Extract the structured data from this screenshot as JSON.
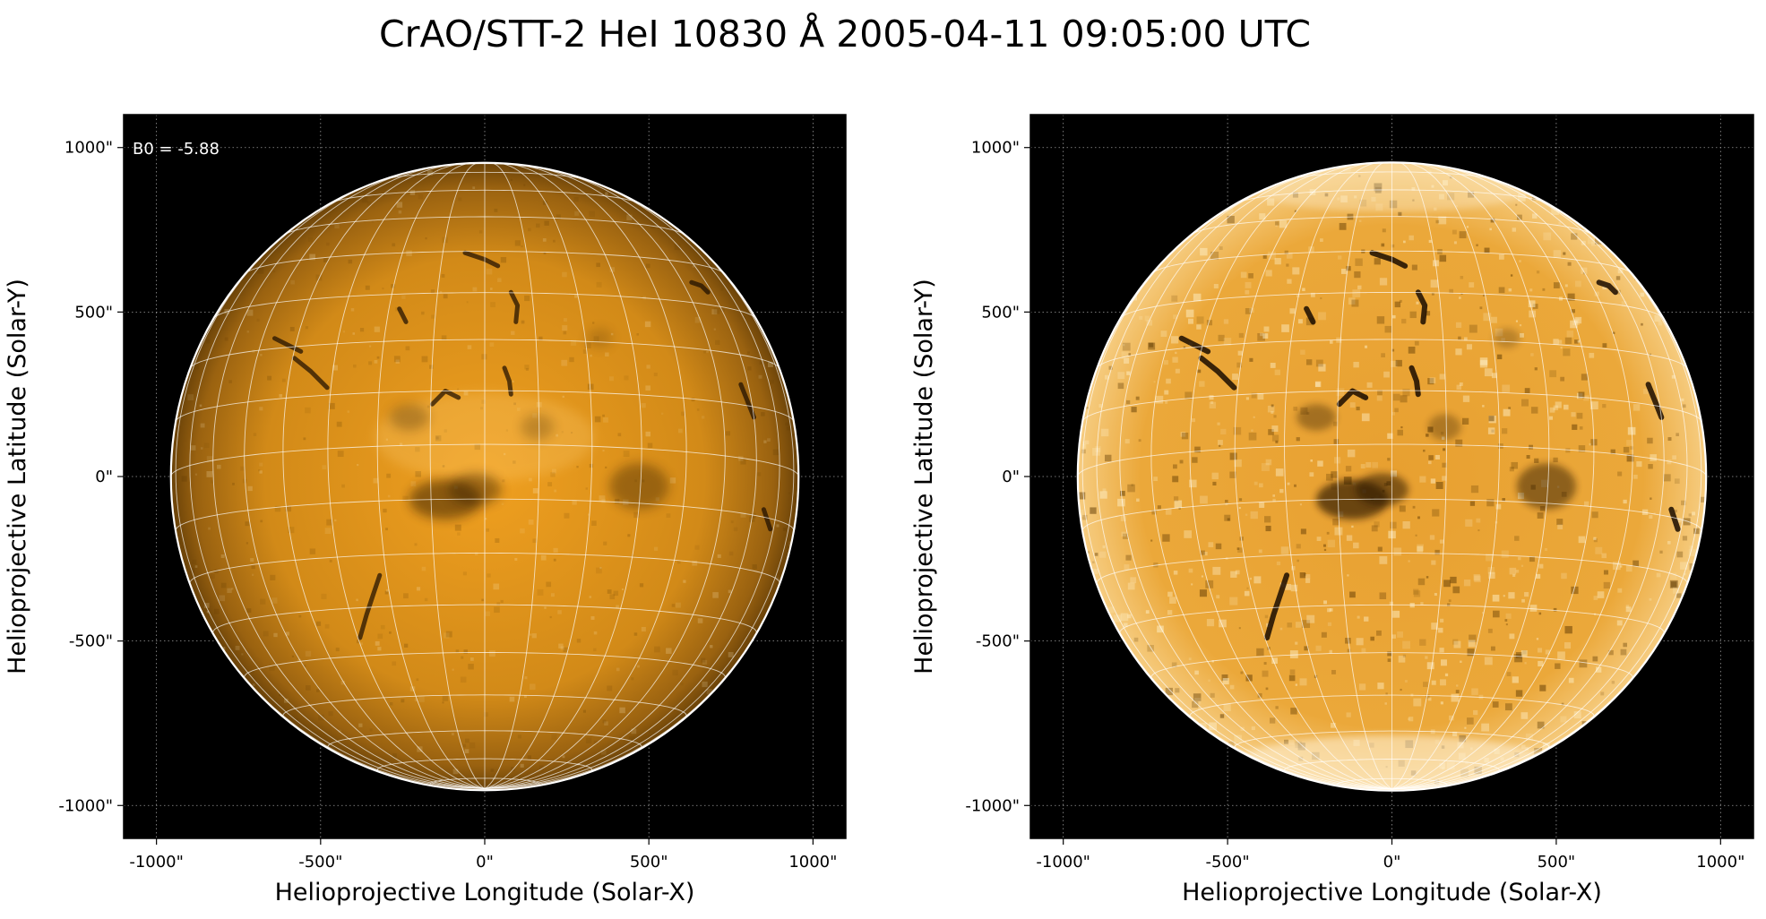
{
  "figure": {
    "title": "CrAO/STT-2 HeI 10830 Å 2005-04-11 09:05:00 UTC"
  },
  "axes": {
    "x_ticks": [
      "-1000\"",
      "-500\"",
      "0\"",
      "500\"",
      "1000\""
    ],
    "y_ticks": [
      "1000\"",
      "500\"",
      "0\"",
      "-500\"",
      "-1000\""
    ],
    "x_tick_values": [
      -1000,
      -500,
      0,
      500,
      1000
    ],
    "y_tick_values": [
      1000,
      500,
      0,
      -500,
      -1000
    ],
    "xlim": [
      -1100,
      1100
    ],
    "ylim": [
      -1100,
      1100
    ]
  },
  "panels": [
    {
      "id": "original",
      "xlabel": "Helioprojective Longitude (Solar-X)",
      "ylabel": "Helioprojective Latitude (Solar-Y)",
      "annotation": "B0 = -5.88",
      "style": "dim"
    },
    {
      "id": "enhanced",
      "xlabel": "Helioprojective Longitude (Solar-X)",
      "ylabel": "Helioprojective Latitude (Solar-Y)",
      "annotation": "",
      "style": "enhanced"
    }
  ],
  "solar_disk": {
    "radius_arcsec": 956,
    "b0_deg": -5.88,
    "grid_spacing_deg": 10
  },
  "colors": {
    "background": "#000000",
    "disk_center": "#f0a020",
    "disk_limb_dim": "#6a4208",
    "disk_enhanced": "#f4b43c",
    "grid": "#ffffff",
    "limb": "#ffffff"
  }
}
